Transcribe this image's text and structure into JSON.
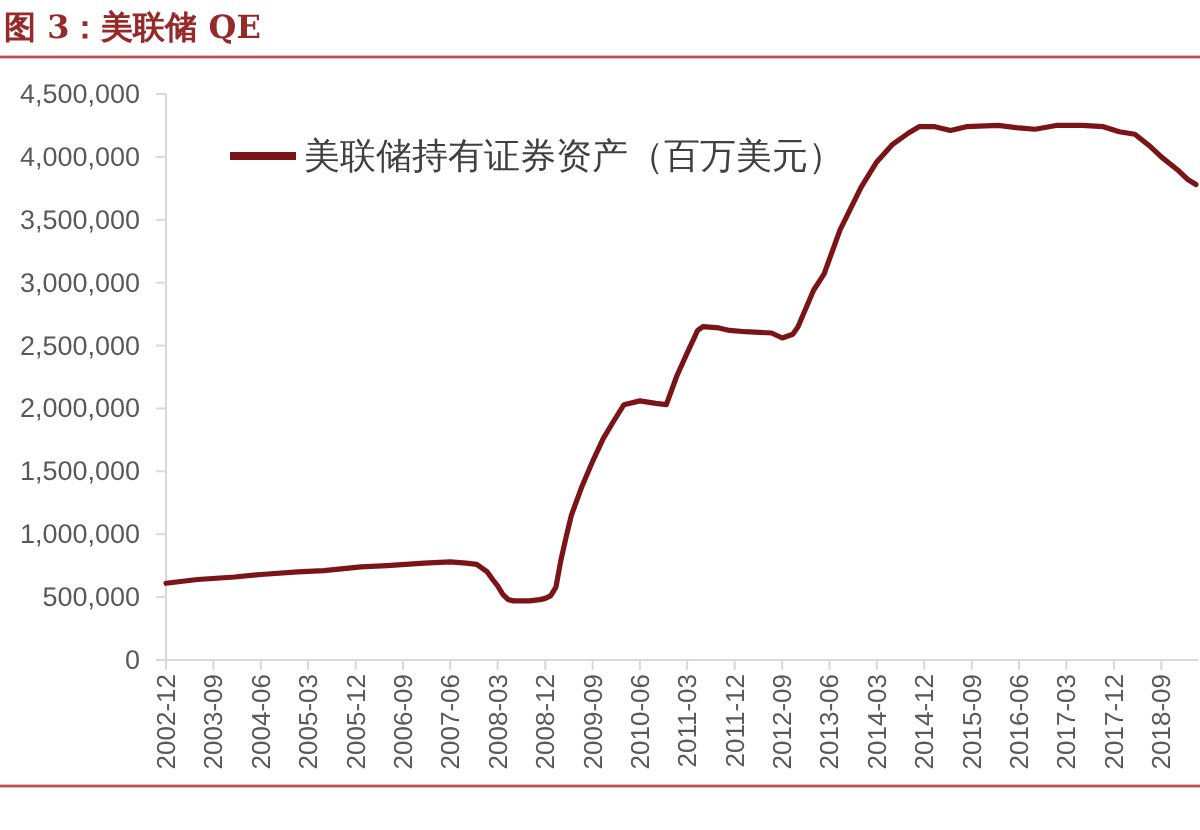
{
  "chart_data": {
    "type": "line",
    "title": "图 3：美联储 QE",
    "x": [
      "2002-12",
      "2003-06",
      "2004-01",
      "2004-06",
      "2005-01",
      "2005-06",
      "2006-01",
      "2006-06",
      "2007-01",
      "2007-06",
      "2007-09",
      "2007-11",
      "2008-01",
      "2008-02",
      "2008-03",
      "2008-04",
      "2008-05",
      "2008-06",
      "2008-09",
      "2008-11",
      "2008-12",
      "2009-01",
      "2009-02",
      "2009-03",
      "2009-04",
      "2009-05",
      "2009-07",
      "2009-09",
      "2009-11",
      "2010-01",
      "2010-03",
      "2010-06",
      "2010-09",
      "2010-11",
      "2011-01",
      "2011-03",
      "2011-05",
      "2011-06",
      "2011-09",
      "2011-11",
      "2012-02",
      "2012-07",
      "2012-09",
      "2012-11",
      "2012-12",
      "2013-03",
      "2013-05",
      "2013-08",
      "2013-12",
      "2014-03",
      "2014-06",
      "2014-09",
      "2014-11",
      "2015-02",
      "2015-05",
      "2015-08",
      "2016-02",
      "2016-06",
      "2016-09",
      "2017-01",
      "2017-06",
      "2017-10",
      "2018-01",
      "2018-04",
      "2018-07",
      "2018-09",
      "2018-12",
      "2019-02",
      "2019-03-20"
    ],
    "series": [
      {
        "name": "美联储持有证券资产（百万美元）",
        "color": "#7b1416",
        "values": [
          610000,
          640000,
          660000,
          680000,
          700000,
          710000,
          740000,
          750000,
          770000,
          780000,
          770000,
          760000,
          700000,
          640000,
          590000,
          520000,
          480000,
          470000,
          470000,
          480000,
          490000,
          510000,
          580000,
          790000,
          980000,
          1150000,
          1380000,
          1580000,
          1760000,
          1900000,
          2030000,
          2060000,
          2040000,
          2030000,
          2260000,
          2440000,
          2620000,
          2650000,
          2640000,
          2620000,
          2610000,
          2600000,
          2560000,
          2590000,
          2650000,
          2940000,
          3070000,
          3420000,
          3760000,
          3960000,
          4100000,
          4190000,
          4240000,
          4240000,
          4210000,
          4240000,
          4250000,
          4230000,
          4220000,
          4250000,
          4250000,
          4240000,
          4200000,
          4180000,
          4080000,
          4000000,
          3900000,
          3820000,
          3780000
        ]
      }
    ],
    "xlim": [
      "2002-12",
      "2019-04"
    ],
    "xticks": [
      "2002-12",
      "2003-09",
      "2004-06",
      "2005-03",
      "2005-12",
      "2006-09",
      "2007-06",
      "2008-03",
      "2008-12",
      "2009-09",
      "2010-06",
      "2011-03",
      "2011-12",
      "2012-09",
      "2013-06",
      "2014-03",
      "2014-12",
      "2015-09",
      "2016-06",
      "2017-03",
      "2017-12",
      "2018-09"
    ],
    "ylim": [
      0,
      4500000
    ],
    "yticks": [
      0,
      {
        "value": 500000,
        "label": "500,000"
      },
      {
        "value": 1000000,
        "label": "1,000,000"
      },
      {
        "value": 1500000,
        "label": "1,500,000"
      },
      {
        "value": 2000000,
        "label": "2,000,000"
      },
      {
        "value": 2500000,
        "label": "2,500,000"
      },
      {
        "value": 3000000,
        "label": "3,000,000"
      },
      {
        "value": 3500000,
        "label": "3,500,000"
      },
      {
        "value": 4000000,
        "label": "4,000,000"
      },
      {
        "value": 4500000,
        "label": "4,500,000"
      }
    ],
    "legend": "top left"
  }
}
